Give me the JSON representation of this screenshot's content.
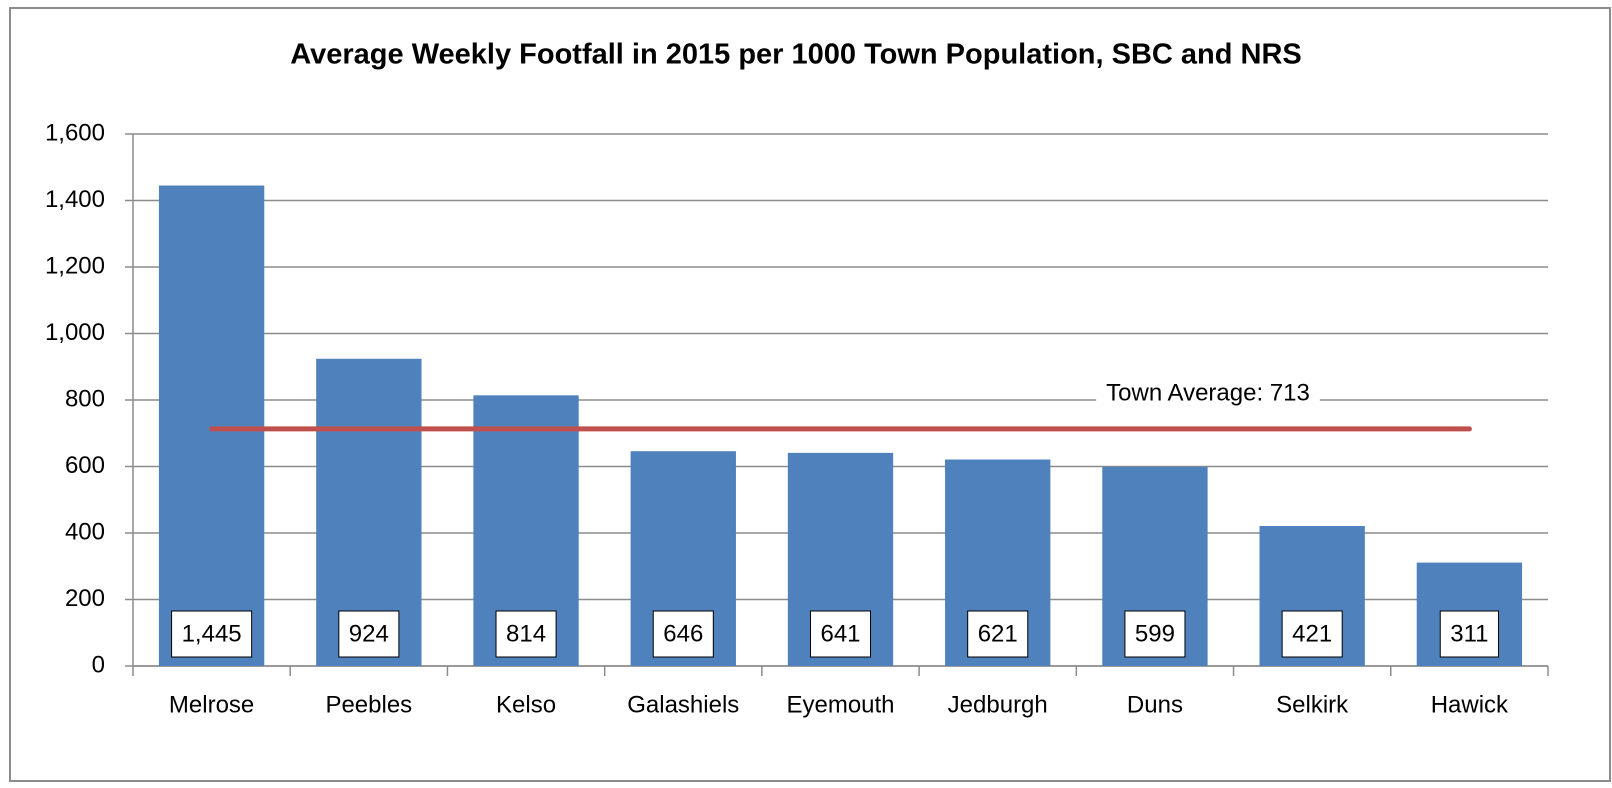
{
  "chart_data": {
    "type": "bar",
    "title": "Average Weekly Footfall in 2015 per 1000 Town Population, SBC and NRS",
    "categories": [
      "Melrose",
      "Peebles",
      "Kelso",
      "Galashiels",
      "Eyemouth",
      "Jedburgh",
      "Duns",
      "Selkirk",
      "Hawick"
    ],
    "values": [
      1445,
      924,
      814,
      646,
      641,
      621,
      599,
      421,
      311
    ],
    "value_labels": [
      "1,445",
      "924",
      "814",
      "646",
      "641",
      "621",
      "599",
      "421",
      "311"
    ],
    "color": "#4f81bd",
    "average": {
      "value": 713,
      "label": "Town Average: 713",
      "color": "#c0504d"
    },
    "ylim": [
      0,
      1600
    ],
    "yticks": [
      0,
      200,
      400,
      600,
      800,
      {
        "value": 1000,
        "label": "1,000"
      },
      {
        "value": 1200,
        "label": "1,200"
      },
      {
        "value": 1400,
        "label": "1,400"
      },
      {
        "value": 1600,
        "label": "1,600"
      }
    ],
    "grid": true
  }
}
